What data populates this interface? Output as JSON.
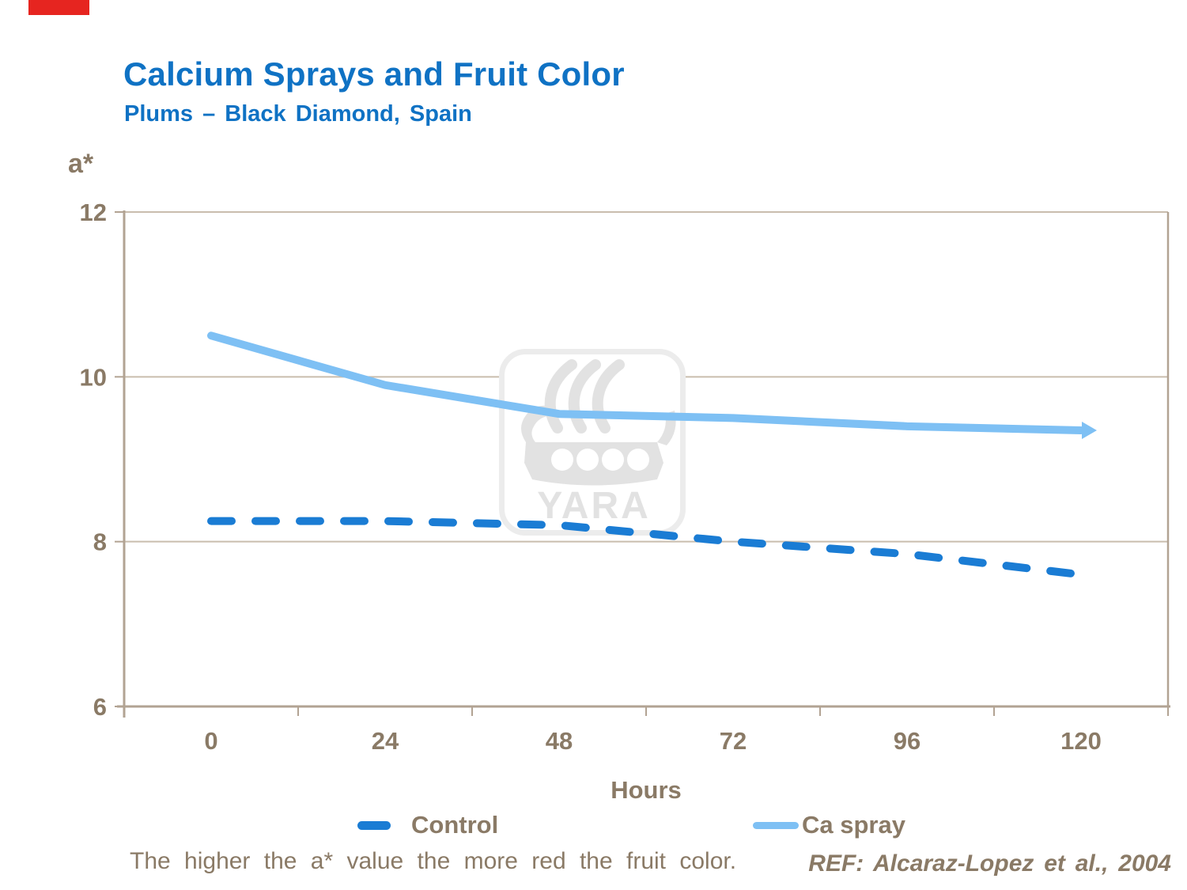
{
  "page": {
    "title": "Calcium Sprays and Fruit Color",
    "subtitle": "Plums – Black Diamond, Spain",
    "footnote": "The higher the a* value the more red the fruit color.",
    "reference": "REF: Alcaraz-Lopez et al., 2004"
  },
  "watermark": {
    "icon": "yara-viking-ship-logo",
    "label": "YARA"
  },
  "decor": {
    "corner_flag_color": "#e62520"
  },
  "colors": {
    "title_blue": "#0f72c4",
    "text_taupe": "#8a7a66",
    "axis": "#b2a393",
    "gridline": "#c9bdae",
    "control_blue": "#1a7cd4",
    "ca_spray_blue": "#7ec0f4",
    "watermark_gray": "#e2e2e2",
    "watermark_border": "#ececec"
  },
  "chart_data": {
    "type": "line",
    "title": "Calcium Sprays and Fruit Color",
    "subtitle": "Plums – Black Diamond, Spain",
    "xlabel": "Hours",
    "ylabel": "a*",
    "categories": [
      0,
      24,
      48,
      72,
      96,
      120
    ],
    "series": [
      {
        "name": "Control",
        "style": "dashed",
        "color": "#1a7cd4",
        "values": [
          8.25,
          8.25,
          8.2,
          8.0,
          7.85,
          7.6
        ]
      },
      {
        "name": "Ca spray",
        "style": "solid-arrow-end",
        "color": "#7ec0f4",
        "values": [
          10.5,
          9.9,
          9.55,
          9.5,
          9.4,
          9.35
        ]
      }
    ],
    "ylim": [
      6,
      12
    ],
    "yticks": [
      6,
      8,
      10,
      12
    ],
    "grid": "horizontal",
    "legend_position": "bottom"
  }
}
